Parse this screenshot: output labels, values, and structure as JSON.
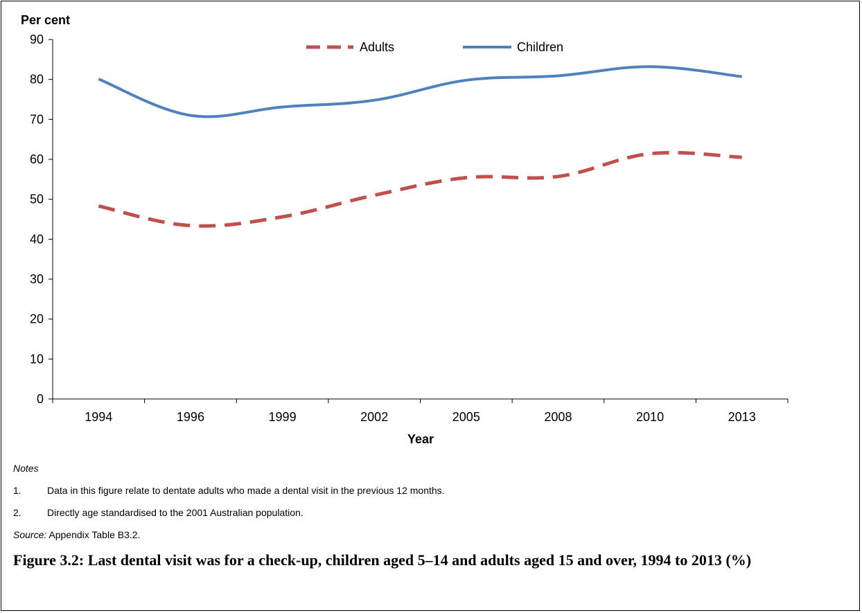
{
  "chart_data": {
    "type": "line",
    "ylabel": "Per cent",
    "xlabel": "Year",
    "categories": [
      "1994",
      "1996",
      "1999",
      "2002",
      "2005",
      "2008",
      "2010",
      "2013"
    ],
    "ylim": [
      0,
      90
    ],
    "yticks": [
      0,
      10,
      20,
      30,
      40,
      50,
      60,
      70,
      80,
      90
    ],
    "series": [
      {
        "name": "Adults",
        "values": [
          48.3,
          43.4,
          45.6,
          51.0,
          55.4,
          55.7,
          61.4,
          60.5
        ],
        "color": "#C0504D",
        "style": "dashed"
      },
      {
        "name": "Children",
        "values": [
          80.1,
          71.0,
          73.1,
          74.8,
          79.8,
          80.9,
          83.2,
          80.7
        ],
        "color": "#4F81BD",
        "style": "solid"
      }
    ],
    "legend": "top"
  },
  "notes": {
    "heading": "Notes",
    "items": [
      {
        "num": "1.",
        "text": "Data in this figure relate to dentate adults who made a dental visit in the previous 12 months."
      },
      {
        "num": "2.",
        "text": "Directly age standardised to the 2001 Australian population."
      }
    ],
    "source_label": "Source:",
    "source_text": " Appendix Table B3.2."
  },
  "caption": "Figure 3.2: Last dental visit was for a check-up, children aged 5–14 and adults aged 15 and over, 1994 to 2013 (%)"
}
